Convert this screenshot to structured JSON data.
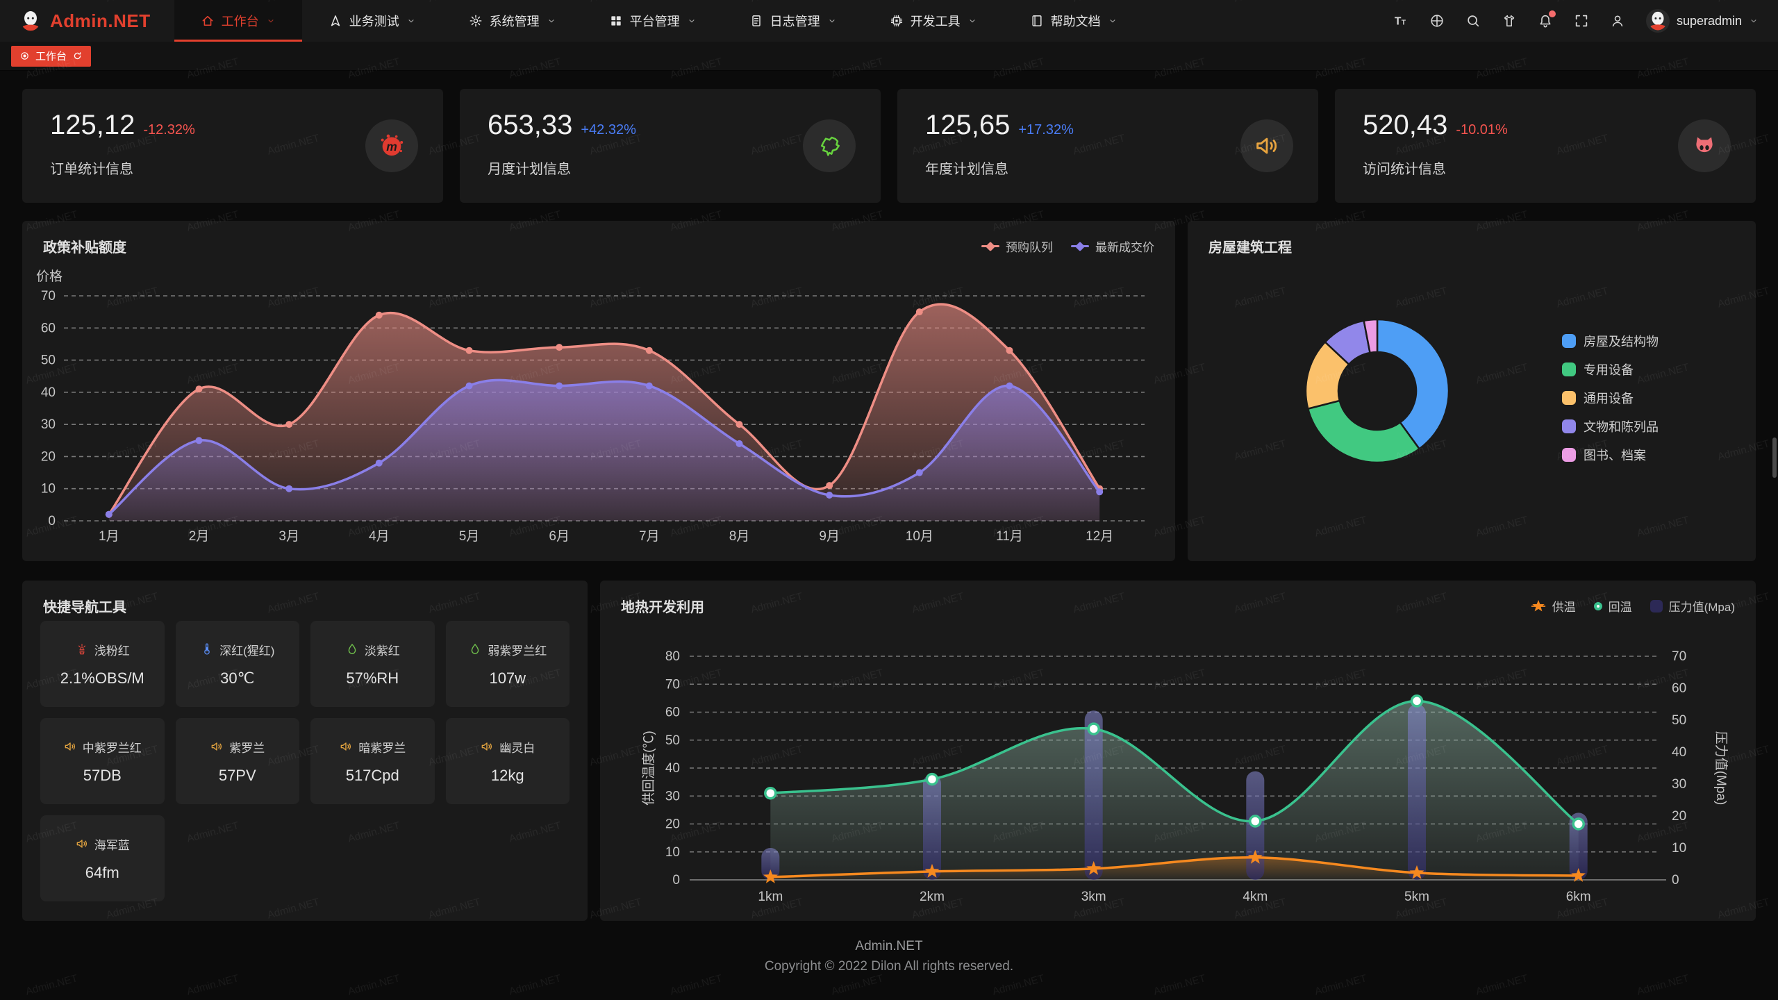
{
  "watermark": "Admin.NET",
  "colors": {
    "accent": "#e2402e",
    "delta_up": "#4a7cf5",
    "delta_down": "#f5544f"
  },
  "header": {
    "logo_text": "Admin.NET",
    "menu": [
      {
        "label": "工作台",
        "icon": "home-icon",
        "active": true
      },
      {
        "label": "业务测试",
        "icon": "nav-arrow-icon",
        "active": false
      },
      {
        "label": "系统管理",
        "icon": "gear-icon",
        "active": false
      },
      {
        "label": "平台管理",
        "icon": "grid-icon",
        "active": false
      },
      {
        "label": "日志管理",
        "icon": "log-icon",
        "active": false
      },
      {
        "label": "开发工具",
        "icon": "chip-icon",
        "active": false
      },
      {
        "label": "帮助文档",
        "icon": "doc-icon",
        "active": false
      }
    ],
    "toolbar_icons": [
      "font-size-icon",
      "language-icon",
      "search-icon",
      "theme-icon",
      "bell-icon",
      "fullscreen-icon",
      "user-icon"
    ],
    "username": "superadmin"
  },
  "tabbar": {
    "tabs": [
      {
        "label": "工作台",
        "active": true
      }
    ]
  },
  "stats": [
    {
      "value": "125,12",
      "delta": "-12.32%",
      "trend": "down",
      "label": "订单统计信息",
      "icon": "meetup-icon",
      "icon_color": "#e13b30"
    },
    {
      "value": "653,33",
      "delta": "+42.32%",
      "trend": "up",
      "label": "月度计划信息",
      "icon": "china-map-icon",
      "icon_color": "#67d23e"
    },
    {
      "value": "125,65",
      "delta": "+17.32%",
      "trend": "up",
      "label": "年度计划信息",
      "icon": "speaker-icon",
      "icon_color": "#e8a33d"
    },
    {
      "value": "520,43",
      "delta": "-10.01%",
      "trend": "down",
      "label": "访问统计信息",
      "icon": "cat-icon",
      "icon_color": "#ee6e76"
    }
  ],
  "quicknav": {
    "title": "快捷导航工具",
    "items": [
      {
        "icon": "hydrant-icon",
        "icon_color": "#d9453a",
        "label": "浅粉红",
        "value": "2.1%OBS/M"
      },
      {
        "icon": "thermometer-icon",
        "icon_color": "#5b8ff9",
        "label": "深红(猩红)",
        "value": "30℃"
      },
      {
        "icon": "drop-icon",
        "icon_color": "#6fbf4c",
        "label": "淡紫红",
        "value": "57%RH"
      },
      {
        "icon": "drop-icon",
        "icon_color": "#6fbf4c",
        "label": "弱紫罗兰红",
        "value": "107w"
      },
      {
        "icon": "speaker-icon",
        "icon_color": "#e0a23f",
        "label": "中紫罗兰红",
        "value": "57DB"
      },
      {
        "icon": "speaker-icon",
        "icon_color": "#e0a23f",
        "label": "紫罗兰",
        "value": "57PV"
      },
      {
        "icon": "speaker-icon",
        "icon_color": "#e0a23f",
        "label": "暗紫罗兰",
        "value": "517Cpd"
      },
      {
        "icon": "speaker-icon",
        "icon_color": "#e0a23f",
        "label": "幽灵白",
        "value": "12kg"
      },
      {
        "icon": "speaker-icon",
        "icon_color": "#e0a23f",
        "label": "海军蓝",
        "value": "64fm"
      }
    ]
  },
  "footer": {
    "line1": "Admin.NET",
    "line2": "Copyright © 2022 Dilon All rights reserved."
  },
  "chart_data": [
    {
      "type": "area",
      "title": "政策补贴额度",
      "ylabel": "价格",
      "ylim": [
        0,
        70
      ],
      "grid": true,
      "legend_position": "top-right",
      "categories": [
        "1月",
        "2月",
        "3月",
        "4月",
        "5月",
        "6月",
        "7月",
        "8月",
        "9月",
        "10月",
        "11月",
        "12月"
      ],
      "series": [
        {
          "name": "预购队列",
          "color": "#ee8e85",
          "values": [
            2,
            41,
            30,
            64,
            53,
            54,
            53,
            30,
            11,
            65,
            53,
            10
          ]
        },
        {
          "name": "最新成交价",
          "color": "#8a7fe8",
          "values": [
            2,
            25,
            10,
            18,
            42,
            42,
            42,
            24,
            8,
            15,
            42,
            9
          ]
        }
      ]
    },
    {
      "type": "pie",
      "title": "房屋建筑工程",
      "legend_position": "right",
      "slices": [
        {
          "label": "房屋及结构物",
          "value": 40,
          "color": "#4e9ef5"
        },
        {
          "label": "专用设备",
          "value": 31,
          "color": "#41c981"
        },
        {
          "label": "通用设备",
          "value": 16,
          "color": "#fbc16b"
        },
        {
          "label": "文物和陈列品",
          "value": 10,
          "color": "#9187ea"
        },
        {
          "label": "图书、档案",
          "value": 3,
          "color": "#ec9ce4"
        }
      ]
    },
    {
      "type": "combo",
      "title": "地热开发利用",
      "legend_position": "top-right",
      "categories": [
        "1km",
        "2km",
        "3km",
        "4km",
        "5km",
        "6km"
      ],
      "left_axis": {
        "label": "供回温度(℃)",
        "min": 0,
        "max": 80
      },
      "right_axis": {
        "label": "压力值(Mpa)",
        "min": 0,
        "max": 70
      },
      "series": [
        {
          "name": "供温",
          "chart": "line",
          "marker": "star",
          "axis": "left",
          "color": "#f6891f",
          "values": [
            1,
            3,
            4,
            8,
            2.5,
            1.5
          ]
        },
        {
          "name": "回温",
          "chart": "line",
          "marker": "circle",
          "axis": "left",
          "color": "#3ac28e",
          "values": [
            31,
            36,
            54,
            21,
            64,
            20
          ]
        },
        {
          "name": "压力值(Mpa)",
          "chart": "bar",
          "axis": "right",
          "color": "#6c6cb4",
          "values": [
            10,
            33,
            53,
            34,
            55,
            21
          ]
        }
      ]
    }
  ]
}
